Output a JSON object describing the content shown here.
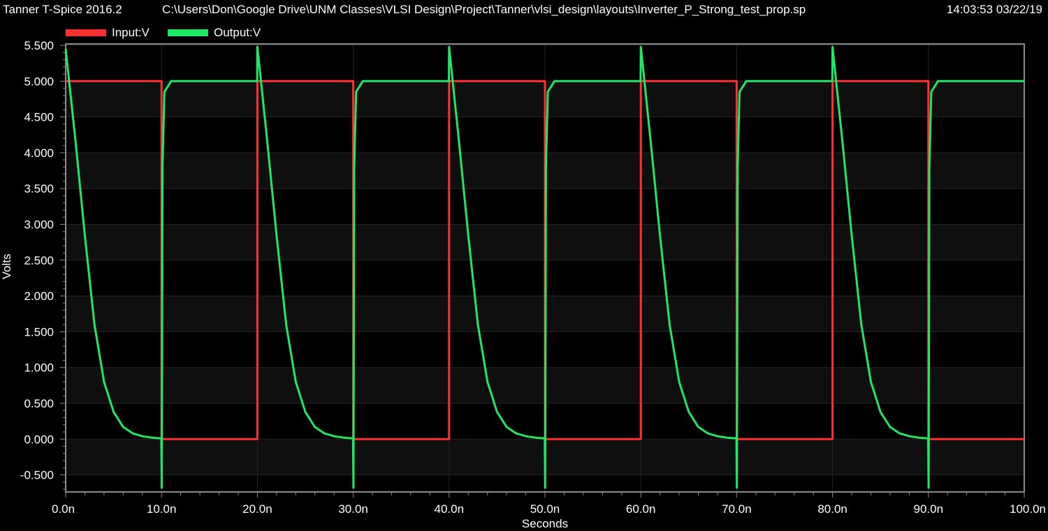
{
  "header": {
    "app_title": "Tanner T-Spice 2016.2",
    "file_path": "C:\\Users\\Don\\Google Drive\\UNM Classes\\VLSI Design\\Project\\Tanner\\vlsi_design\\layouts\\Inverter_P_Strong_test_prop.sp",
    "timestamp": "14:03:53 03/22/19"
  },
  "colors": {
    "input": "#ff3030",
    "output": "#1ee864",
    "background": "#000000",
    "band": "#0f0f0f",
    "frame": "#8c8c8c"
  },
  "chart_data": {
    "type": "line",
    "xlabel": "Seconds",
    "ylabel": "Volts",
    "xlim": [
      0,
      100
    ],
    "ylim": [
      -0.7,
      5.5
    ],
    "x_unit": "ns",
    "x_tick_labels": [
      "0.0n",
      "10.0n",
      "20.0n",
      "30.0n",
      "40.0n",
      "50.0n",
      "60.0n",
      "70.0n",
      "80.0n",
      "90.0n",
      "100.0n"
    ],
    "x_ticks": [
      0,
      10,
      20,
      30,
      40,
      50,
      60,
      70,
      80,
      90,
      100
    ],
    "y_tick_labels": [
      "-0.500",
      "0.000",
      "0.500",
      "1.000",
      "1.500",
      "2.000",
      "2.500",
      "3.000",
      "3.500",
      "4.000",
      "4.500",
      "5.000",
      "5.500"
    ],
    "y_ticks": [
      -0.5,
      0,
      0.5,
      1,
      1.5,
      2,
      2.5,
      3,
      3.5,
      4,
      4.5,
      5,
      5.5
    ],
    "legend_position": "top-left",
    "series": [
      {
        "name": "Input:V",
        "x": [
          0,
          10,
          10,
          20,
          20,
          30,
          30,
          40,
          40,
          50,
          50,
          60,
          60,
          70,
          70,
          80,
          80,
          90,
          90,
          100
        ],
        "values": [
          5,
          5,
          0,
          0,
          5,
          5,
          0,
          0,
          5,
          5,
          0,
          0,
          5,
          5,
          0,
          0,
          5,
          5,
          0,
          0
        ]
      },
      {
        "name": "Output:V",
        "x": [
          0,
          1,
          2,
          3,
          4,
          5,
          6,
          7,
          8,
          9,
          9.98,
          10.02,
          10.1,
          10.3,
          11,
          19.98,
          20,
          21,
          22,
          23,
          24,
          25,
          26,
          27,
          28,
          29,
          29.98,
          30.02,
          30.1,
          30.3,
          31,
          39.98,
          40,
          41,
          42,
          43,
          44,
          45,
          46,
          47,
          48,
          49,
          49.98,
          50.02,
          50.1,
          50.3,
          51,
          59.98,
          60,
          61,
          62,
          63,
          64,
          65,
          66,
          67,
          68,
          69,
          69.98,
          70.02,
          70.1,
          70.3,
          71,
          79.98,
          80,
          81,
          82,
          83,
          84,
          85,
          86,
          87,
          88,
          89,
          89.98,
          90.02,
          90.1,
          90.3,
          91,
          100
        ],
        "values": [
          5.45,
          4.2,
          2.85,
          1.6,
          0.8,
          0.38,
          0.17,
          0.08,
          0.04,
          0.02,
          0.01,
          -0.68,
          3.8,
          4.85,
          5.0,
          5.0,
          5.48,
          4.2,
          2.85,
          1.6,
          0.8,
          0.38,
          0.17,
          0.08,
          0.04,
          0.02,
          0.01,
          -0.68,
          3.8,
          4.85,
          5.0,
          5.0,
          5.48,
          4.2,
          2.85,
          1.6,
          0.8,
          0.38,
          0.17,
          0.08,
          0.04,
          0.02,
          0.01,
          -0.68,
          3.8,
          4.85,
          5.0,
          5.0,
          5.48,
          4.2,
          2.85,
          1.6,
          0.8,
          0.38,
          0.17,
          0.08,
          0.04,
          0.02,
          0.01,
          -0.68,
          3.8,
          4.85,
          5.0,
          5.0,
          5.48,
          4.2,
          2.85,
          1.6,
          0.8,
          0.38,
          0.17,
          0.08,
          0.04,
          0.02,
          0.01,
          -0.68,
          3.8,
          4.85,
          5.0,
          5.0
        ]
      }
    ]
  }
}
